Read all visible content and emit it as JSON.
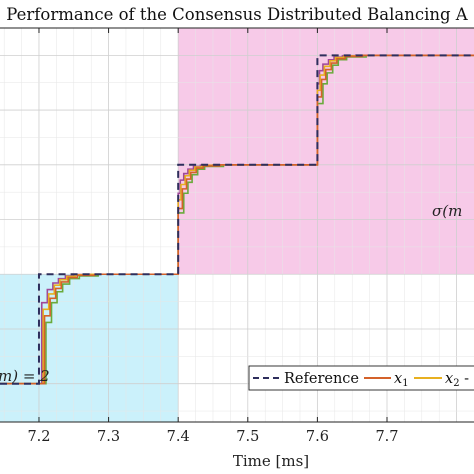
{
  "chart_data": {
    "type": "line",
    "title": "Performance of the Consensus Distributed Balancing A",
    "xlabel": "Time [ms]",
    "xlim": [
      7.144,
      7.825
    ],
    "ylim": [
      -0.35,
      3.25
    ],
    "x_ticks": [
      "7.2",
      "7.3",
      "7.4",
      "7.5",
      "7.6",
      "7.7"
    ],
    "x_tick_values": [
      7.2,
      7.3,
      7.4,
      7.5,
      7.6,
      7.7
    ],
    "grid": true,
    "legend_position": "bottom-right",
    "regions": [
      {
        "label": "m) = 2",
        "x_range": [
          7.144,
          7.4
        ],
        "y_range": [
          -0.35,
          1.0
        ],
        "color": "#b9ecf9"
      },
      {
        "label": "σ(m",
        "x_range": [
          7.4,
          7.825
        ],
        "y_range": [
          1.0,
          3.25
        ],
        "color": "#f4b8e0"
      }
    ],
    "series": [
      {
        "name": "Reference",
        "color": "#2e2e5c",
        "style": "dashed",
        "x": [
          7.144,
          7.2,
          7.2,
          7.4,
          7.4,
          7.6,
          7.6,
          7.825
        ],
        "y": [
          0,
          0,
          1,
          1,
          2,
          2,
          3,
          3
        ]
      },
      {
        "name": "x1",
        "color": "#d4622a",
        "style": "solid",
        "x": [
          7.144,
          7.208,
          7.208,
          7.216,
          7.216,
          7.224,
          7.224,
          7.232,
          7.232,
          7.242,
          7.242,
          7.255,
          7.255,
          7.28,
          7.28,
          7.4,
          7.4,
          7.406,
          7.406,
          7.412,
          7.412,
          7.418,
          7.418,
          7.426,
          7.426,
          7.436,
          7.436,
          7.46,
          7.46,
          7.6,
          7.6,
          7.606,
          7.606,
          7.612,
          7.612,
          7.62,
          7.62,
          7.628,
          7.628,
          7.64,
          7.64,
          7.665,
          7.665,
          7.825
        ],
        "y": [
          0,
          0,
          0.62,
          0.62,
          0.78,
          0.78,
          0.87,
          0.87,
          0.93,
          0.93,
          0.97,
          0.97,
          0.99,
          0.99,
          1.0,
          1.0,
          1.6,
          1.6,
          1.78,
          1.78,
          1.87,
          1.87,
          1.93,
          1.93,
          1.97,
          1.97,
          1.99,
          1.99,
          2.0,
          2.0,
          2.62,
          2.62,
          2.78,
          2.78,
          2.87,
          2.87,
          2.93,
          2.93,
          2.97,
          2.97,
          2.99,
          2.99,
          3.0,
          3.0
        ]
      },
      {
        "name": "x2",
        "color": "#e8b020",
        "style": "solid",
        "x": [
          7.144,
          7.206,
          7.206,
          7.214,
          7.214,
          7.222,
          7.222,
          7.23,
          7.23,
          7.24,
          7.24,
          7.252,
          7.252,
          7.275,
          7.275,
          7.4,
          7.4,
          7.404,
          7.404,
          7.41,
          7.41,
          7.416,
          7.416,
          7.424,
          7.424,
          7.434,
          7.434,
          7.455,
          7.455,
          7.6,
          7.6,
          7.604,
          7.604,
          7.61,
          7.61,
          7.618,
          7.618,
          7.626,
          7.626,
          7.638,
          7.638,
          7.66,
          7.66,
          7.825
        ],
        "y": [
          0,
          0,
          0.68,
          0.68,
          0.82,
          0.82,
          0.9,
          0.9,
          0.95,
          0.95,
          0.98,
          0.98,
          0.995,
          0.995,
          1.0,
          1.0,
          1.68,
          1.68,
          1.82,
          1.82,
          1.9,
          1.9,
          1.95,
          1.95,
          1.98,
          1.98,
          1.995,
          1.995,
          2.0,
          2.0,
          2.68,
          2.68,
          2.82,
          2.82,
          2.9,
          2.9,
          2.95,
          2.95,
          2.98,
          2.98,
          2.995,
          2.995,
          3.0,
          3.0
        ]
      },
      {
        "name": "",
        "color": "#a04898",
        "style": "solid",
        "show_in_legend": false,
        "x": [
          7.144,
          7.204,
          7.204,
          7.212,
          7.212,
          7.22,
          7.22,
          7.228,
          7.228,
          7.238,
          7.238,
          7.25,
          7.25,
          7.27,
          7.27,
          7.4,
          7.4,
          7.403,
          7.403,
          7.408,
          7.408,
          7.414,
          7.414,
          7.422,
          7.422,
          7.432,
          7.432,
          7.45,
          7.45,
          7.6,
          7.6,
          7.603,
          7.603,
          7.608,
          7.608,
          7.616,
          7.616,
          7.624,
          7.624,
          7.636,
          7.636,
          7.655,
          7.655,
          7.825
        ],
        "y": [
          0,
          0,
          0.74,
          0.74,
          0.86,
          0.86,
          0.92,
          0.92,
          0.96,
          0.96,
          0.985,
          0.985,
          0.997,
          0.997,
          1.0,
          1.0,
          1.74,
          1.74,
          1.86,
          1.86,
          1.92,
          1.92,
          1.96,
          1.96,
          1.985,
          1.985,
          1.997,
          1.997,
          2.0,
          2.0,
          2.74,
          2.74,
          2.86,
          2.86,
          2.92,
          2.92,
          2.96,
          2.96,
          2.985,
          2.985,
          2.997,
          2.997,
          3.0,
          3.0
        ]
      },
      {
        "name": "",
        "color": "#6aaa3c",
        "style": "solid",
        "show_in_legend": false,
        "x": [
          7.144,
          7.21,
          7.21,
          7.218,
          7.218,
          7.226,
          7.226,
          7.234,
          7.234,
          7.244,
          7.244,
          7.258,
          7.258,
          7.285,
          7.285,
          7.4,
          7.4,
          7.408,
          7.408,
          7.414,
          7.414,
          7.42,
          7.42,
          7.428,
          7.428,
          7.438,
          7.438,
          7.465,
          7.465,
          7.6,
          7.6,
          7.608,
          7.608,
          7.614,
          7.614,
          7.622,
          7.622,
          7.63,
          7.63,
          7.642,
          7.642,
          7.67,
          7.67,
          7.825
        ],
        "y": [
          0,
          0,
          0.56,
          0.56,
          0.74,
          0.74,
          0.84,
          0.84,
          0.91,
          0.91,
          0.96,
          0.96,
          0.985,
          0.985,
          1.0,
          1.0,
          1.56,
          1.56,
          1.74,
          1.74,
          1.84,
          1.84,
          1.91,
          1.91,
          1.96,
          1.96,
          1.985,
          1.985,
          2.0,
          2.0,
          2.56,
          2.56,
          2.74,
          2.74,
          2.84,
          2.84,
          2.91,
          2.91,
          2.96,
          2.96,
          2.985,
          2.985,
          3.0,
          3.0
        ]
      },
      {
        "name": "",
        "color": "#3cb8c8",
        "style": "solid",
        "show_in_legend": false,
        "x": [
          7.144,
          7.212,
          7.212,
          7.22,
          7.22,
          7.228,
          7.228,
          7.236,
          7.236,
          7.246,
          7.246,
          7.26,
          7.26,
          7.29,
          7.29,
          7.4,
          7.4,
          7.41,
          7.41,
          7.416,
          7.416,
          7.422,
          7.422,
          7.43,
          7.43,
          7.44,
          7.44,
          7.47,
          7.47,
          7.6,
          7.6,
          7.61,
          7.61,
          7.616,
          7.616,
          7.624,
          7.624,
          7.632,
          7.632,
          7.644,
          7.644,
          7.675,
          7.675,
          7.825
        ],
        "y": [
          0,
          0,
          0.5,
          0.5,
          0.7,
          0.7,
          0.82,
          0.82,
          0.9,
          0.9,
          0.95,
          0.95,
          0.98,
          0.98,
          1.0,
          1.0,
          1.5,
          1.5,
          1.7,
          1.7,
          1.82,
          1.82,
          1.9,
          1.9,
          1.95,
          1.95,
          1.98,
          1.98,
          2.0,
          2.0,
          2.5,
          2.5,
          2.7,
          2.7,
          2.82,
          2.82,
          2.9,
          2.9,
          2.95,
          2.95,
          2.98,
          2.98,
          3.0,
          3.0
        ]
      }
    ],
    "legend": {
      "entries": [
        {
          "label": "Reference",
          "color": "#2e2e5c",
          "style": "dashed"
        },
        {
          "label": "x",
          "subscript": "1",
          "color": "#d4622a",
          "style": "solid"
        },
        {
          "label": "x",
          "subscript": "2",
          "trailing": " -",
          "color": "#e8b020",
          "style": "solid"
        }
      ]
    }
  }
}
